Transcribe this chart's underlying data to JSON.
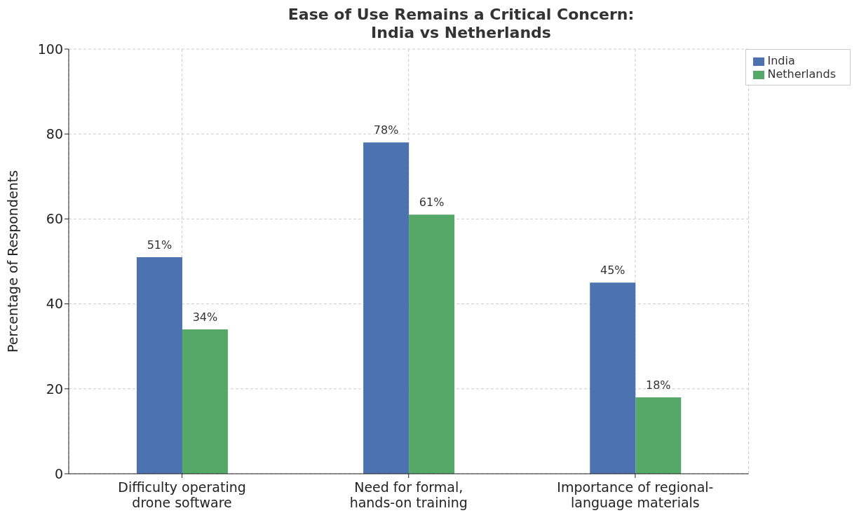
{
  "chart_data": {
    "type": "bar",
    "title": "Ease of Use Remains a Critical Concern:\nIndia vs Netherlands",
    "ylabel": "Percentage of Respondents",
    "categories": [
      "Difficulty operating\ndrone software",
      "Need for formal,\nhands-on training",
      "Importance of regional-\nlanguage materials"
    ],
    "series": [
      {
        "name": "India",
        "color": "#4c72b0",
        "values": [
          51,
          78,
          45
        ],
        "value_labels": [
          "51%",
          "78%",
          "45%"
        ]
      },
      {
        "name": "Netherlands",
        "color": "#55a868",
        "values": [
          34,
          61,
          18
        ],
        "value_labels": [
          "34%",
          "61%",
          "18%"
        ]
      }
    ],
    "ylim": [
      0,
      100
    ],
    "yticks": [
      0,
      20,
      40,
      60,
      80,
      100
    ],
    "grid": true,
    "legend": "top right"
  }
}
